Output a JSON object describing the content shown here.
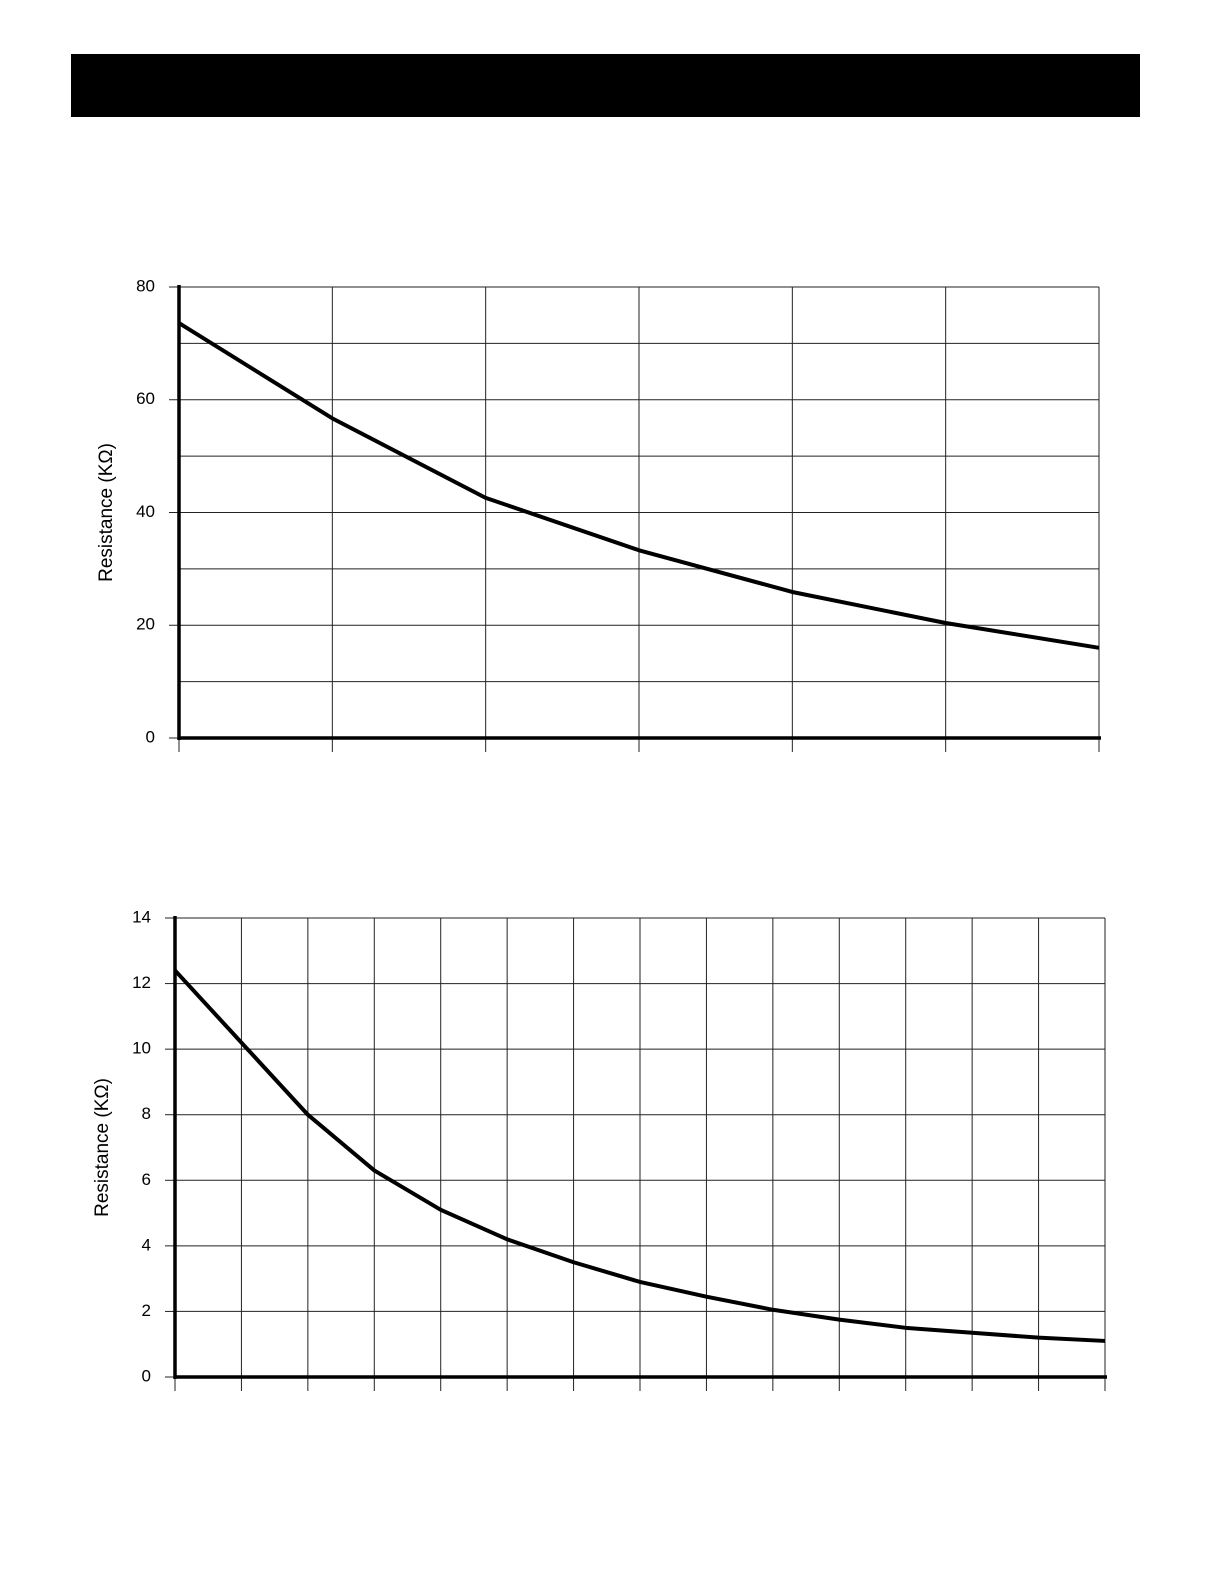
{
  "chart_data": [
    {
      "type": "line",
      "y_label": "Resistance (KΩ)",
      "categories": [
        null,
        null,
        null,
        null,
        null,
        null,
        null
      ],
      "series": [
        {
          "color": "#000000",
          "values": [
            73.6,
            56.7,
            42.6,
            33.3,
            25.9,
            20.4,
            16
          ]
        }
      ],
      "ylim": [
        0,
        80
      ],
      "yticks": [
        0,
        20,
        40,
        60,
        80
      ],
      "minor_yticks": [
        10,
        30,
        50,
        70
      ],
      "grid": true
    },
    {
      "type": "line",
      "y_label": "Resistance (KΩ)",
      "categories": [
        null,
        null,
        null,
        null,
        null,
        null,
        null,
        null,
        null,
        null,
        null,
        null,
        null,
        null,
        null
      ],
      "series": [
        {
          "color": "#000000",
          "values": [
            12.4,
            10.2,
            8.0,
            6.3,
            5.1,
            4.2,
            3.5,
            2.9,
            2.45,
            2.05,
            1.75,
            1.5,
            1.35,
            1.2,
            1.1
          ]
        }
      ],
      "ylim": [
        0,
        14
      ],
      "yticks": [
        0,
        2,
        4,
        6,
        8,
        10,
        12,
        14
      ],
      "grid": true
    }
  ]
}
